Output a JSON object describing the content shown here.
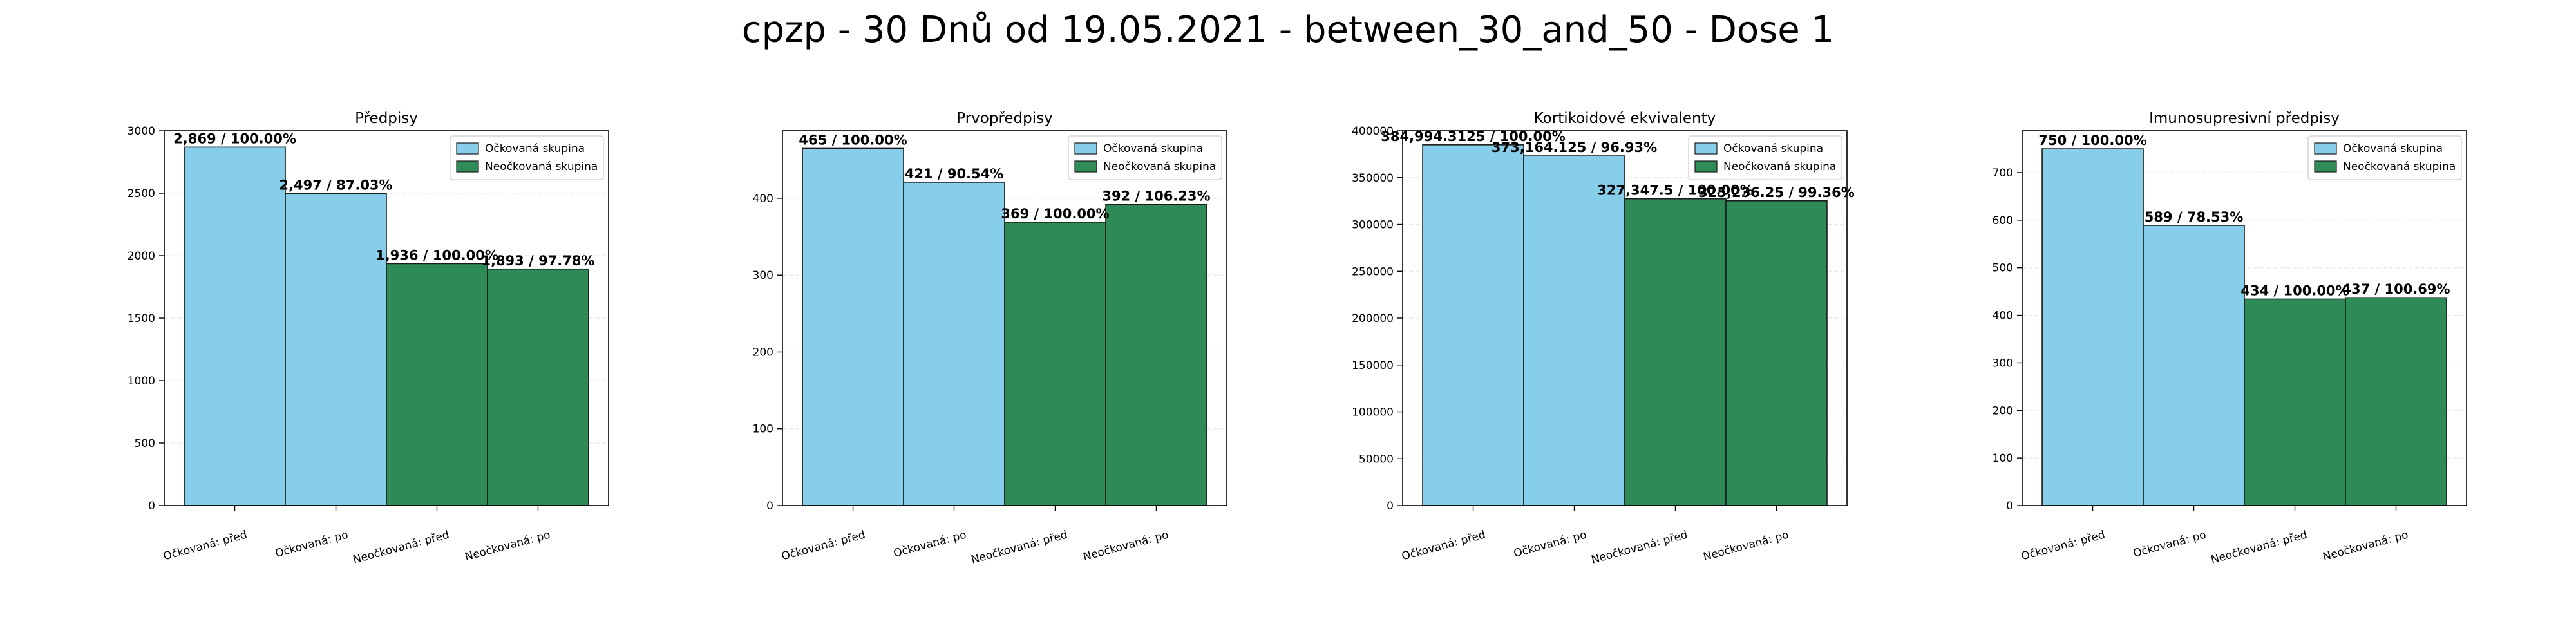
{
  "suptitle": "cpzp - 30 Dnů od 19.05.2021 - between_30_and_50 - Dose 1",
  "colors": {
    "vaccinated": "#87CEEB",
    "unvaccinated": "#2E8B57",
    "edge": "#1a1a1a"
  },
  "chart_data": [
    {
      "type": "bar",
      "title": "Předpisy",
      "categories": [
        "Očkovaná: před",
        "Očkovaná: po",
        "Neočkovaná: před",
        "Neočkovaná: po"
      ],
      "values": [
        2869,
        2497,
        1936,
        1893
      ],
      "labels": [
        "2,869 / 100.00%",
        "2,497 / 87.03%",
        "1,936 / 100.00%",
        "1,893 / 97.78%"
      ],
      "groups": [
        "vaccinated",
        "vaccinated",
        "unvaccinated",
        "unvaccinated"
      ],
      "legend": [
        "Očkovaná skupina",
        "Neočkovaná skupina"
      ],
      "legend_position": "top-right",
      "ylim": [
        0,
        3000
      ],
      "yticks": [
        0,
        500,
        1000,
        1500,
        2000,
        2500,
        3000
      ],
      "ytick_labels": [
        "0",
        "500",
        "1000",
        "1500",
        "2000",
        "2500",
        "3000"
      ],
      "grid": true
    },
    {
      "type": "bar",
      "title": "Prvopředpisy",
      "categories": [
        "Očkovaná: před",
        "Očkovaná: po",
        "Neočkovaná: před",
        "Neočkovaná: po"
      ],
      "values": [
        465,
        421,
        369,
        392
      ],
      "labels": [
        "465 / 100.00%",
        "421 / 90.54%",
        "369 / 100.00%",
        "392 / 106.23%"
      ],
      "groups": [
        "vaccinated",
        "vaccinated",
        "unvaccinated",
        "unvaccinated"
      ],
      "legend": [
        "Očkovaná skupina",
        "Neočkovaná skupina"
      ],
      "legend_position": "top-right",
      "ylim": [
        0,
        488
      ],
      "yticks": [
        0,
        100,
        200,
        300,
        400
      ],
      "ytick_labels": [
        "0",
        "100",
        "200",
        "300",
        "400"
      ],
      "grid": true
    },
    {
      "type": "bar",
      "title": "Kortikoidové ekvivalenty",
      "categories": [
        "Očkovaná: před",
        "Očkovaná: po",
        "Neočkovaná: před",
        "Neočkovaná: po"
      ],
      "values": [
        384994.3125,
        373164.125,
        327347.5,
        325236.25
      ],
      "labels": [
        "384,994.3125 / 100.00%",
        "373,164.125 / 96.93%",
        "327,347.5 / 100.00%",
        "325,236.25 / 99.36%"
      ],
      "groups": [
        "vaccinated",
        "vaccinated",
        "unvaccinated",
        "unvaccinated"
      ],
      "legend": [
        "Očkovaná skupina",
        "Neočkovaná skupina"
      ],
      "legend_position": "top-right",
      "ylim": [
        0,
        400000
      ],
      "yticks": [
        0,
        50000,
        100000,
        150000,
        200000,
        250000,
        300000,
        350000,
        400000
      ],
      "ytick_labels": [
        "0",
        "50000",
        "100000",
        "150000",
        "200000",
        "250000",
        "300000",
        "350000",
        "400000"
      ],
      "grid": true
    },
    {
      "type": "bar",
      "title": "Imunosupresivní předpisy",
      "categories": [
        "Očkovaná: před",
        "Očkovaná: po",
        "Neočkovaná: před",
        "Neočkovaná: po"
      ],
      "values": [
        750,
        589,
        434,
        437
      ],
      "labels": [
        "750 / 100.00%",
        "589 / 78.53%",
        "434 / 100.00%",
        "437 / 100.69%"
      ],
      "groups": [
        "vaccinated",
        "vaccinated",
        "unvaccinated",
        "unvaccinated"
      ],
      "legend": [
        "Očkovaná skupina",
        "Neočkovaná skupina"
      ],
      "legend_position": "top-right",
      "ylim": [
        0,
        788
      ],
      "yticks": [
        0,
        100,
        200,
        300,
        400,
        500,
        600,
        700
      ],
      "ytick_labels": [
        "0",
        "100",
        "200",
        "300",
        "400",
        "500",
        "600",
        "700"
      ],
      "grid": true
    }
  ]
}
